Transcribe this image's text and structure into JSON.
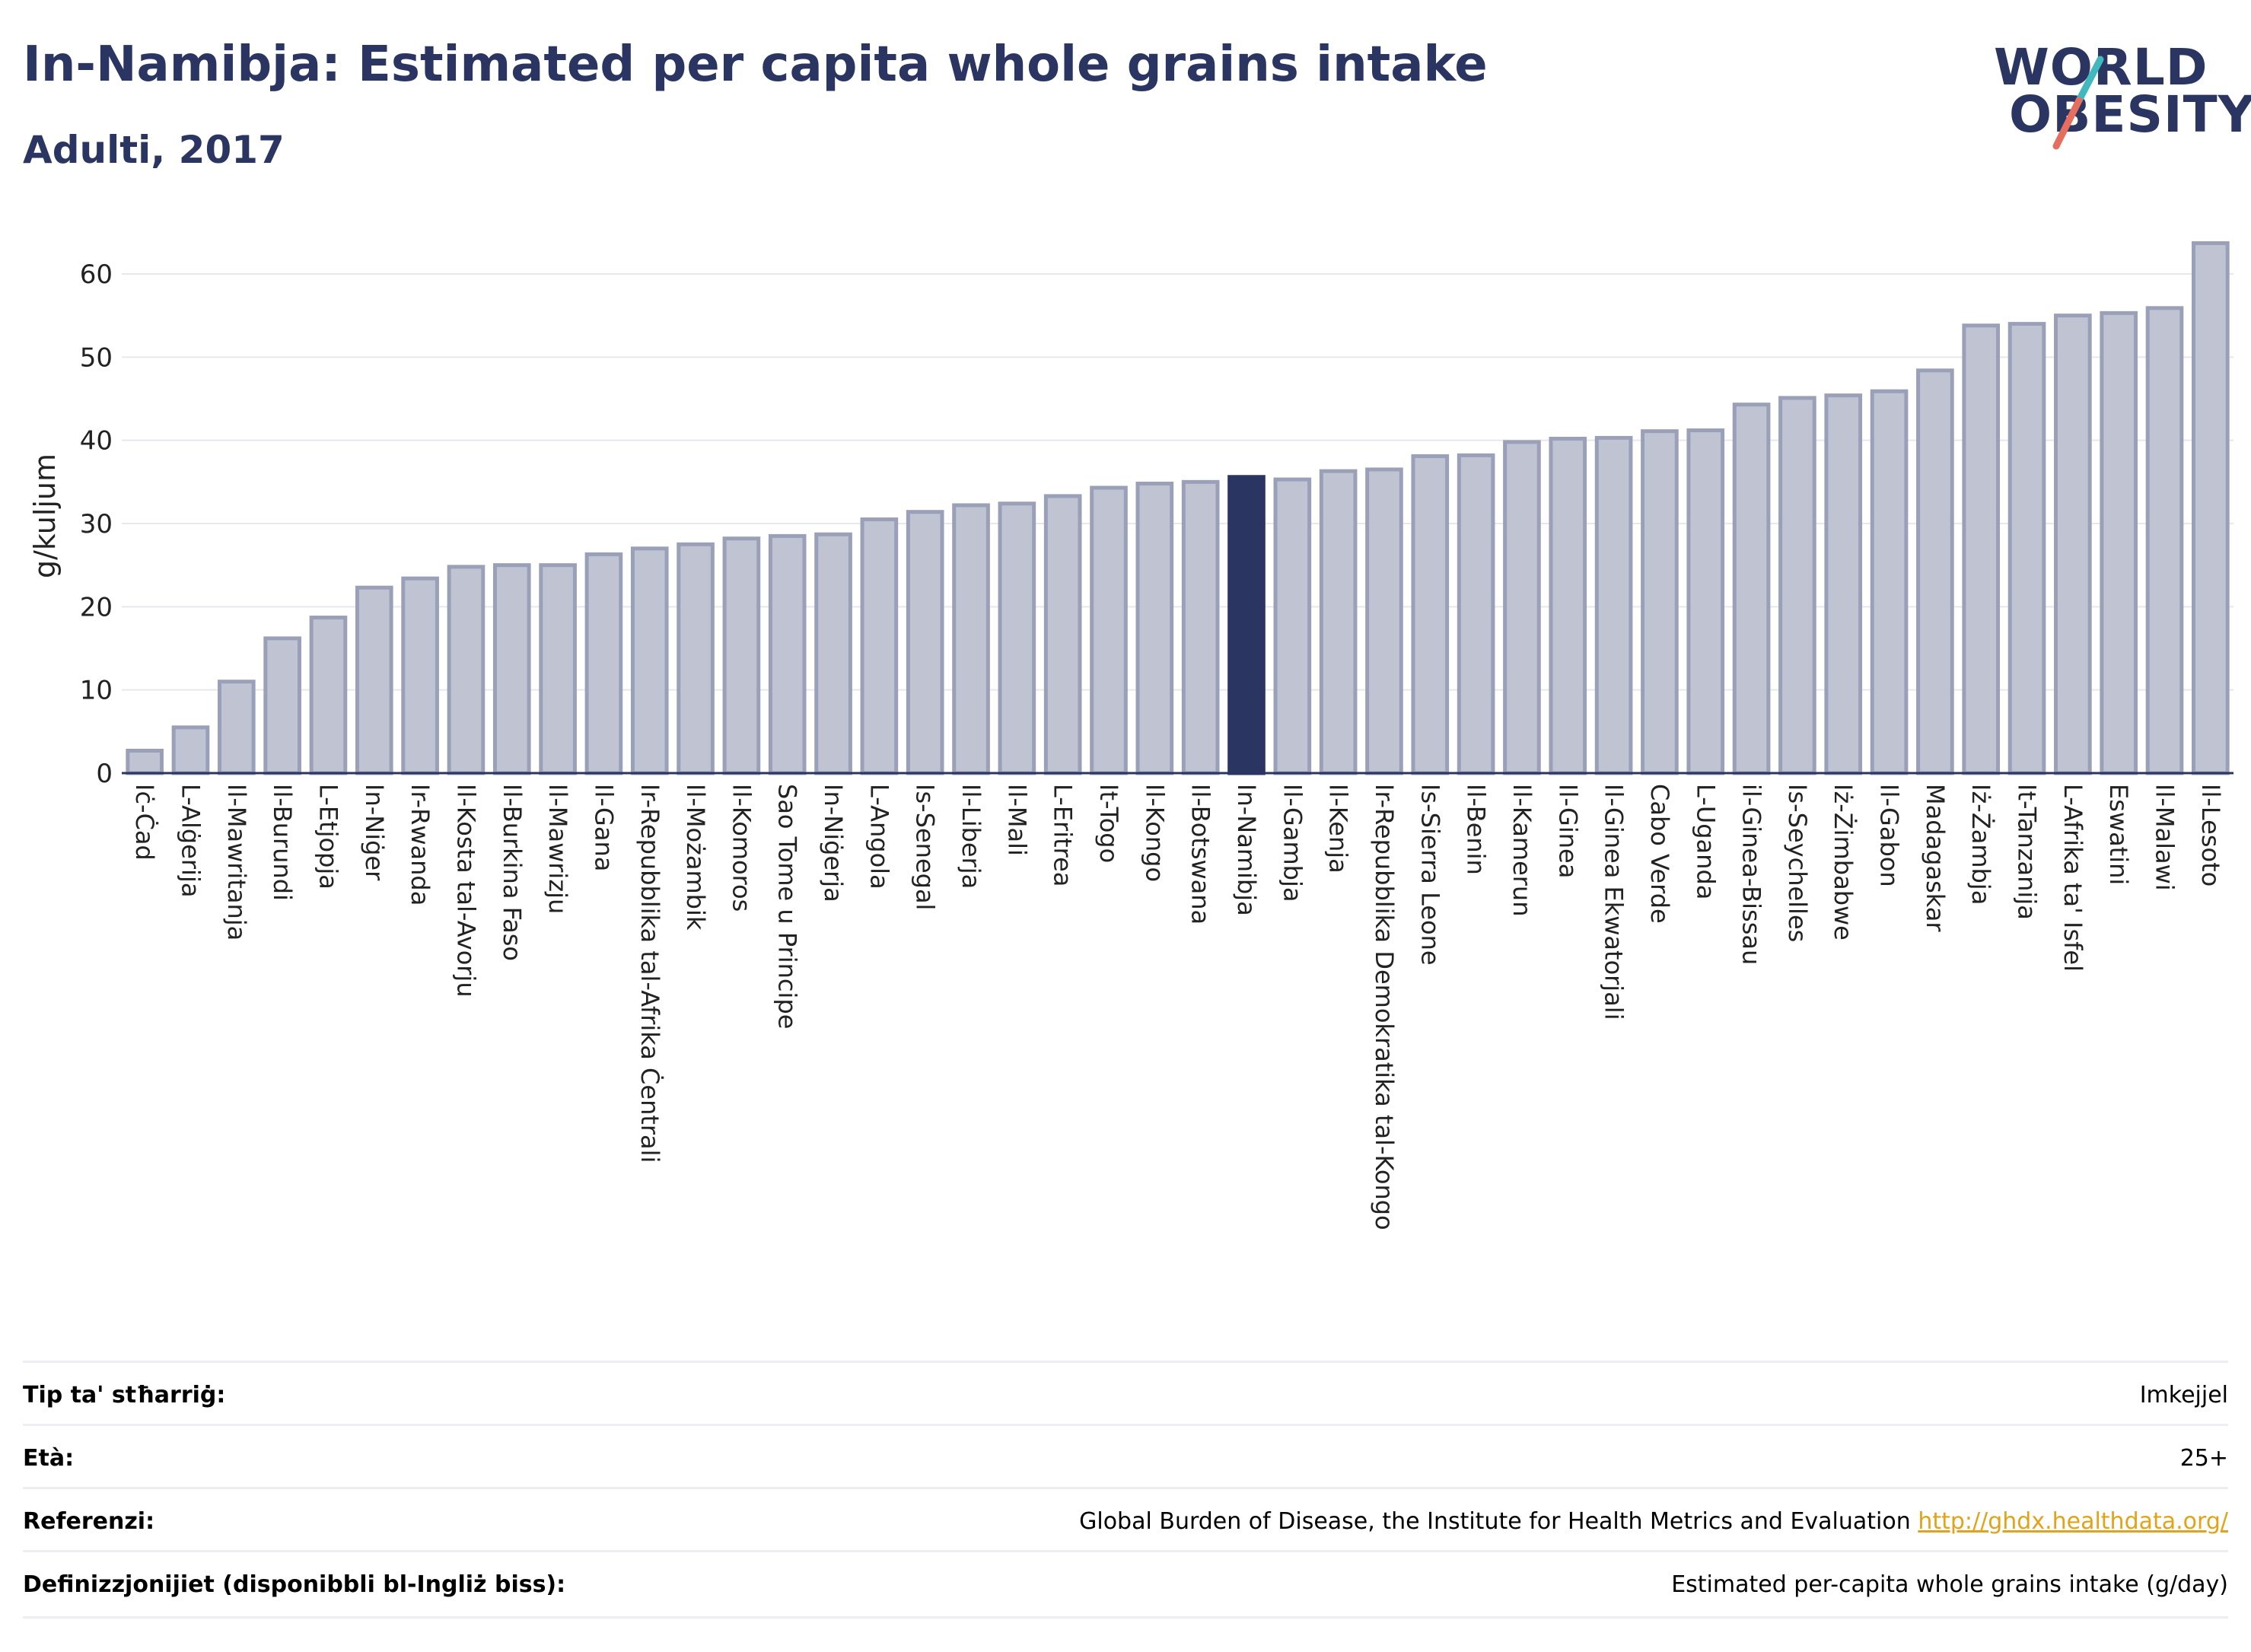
{
  "header": {
    "title": "In-Namibja: Estimated per capita whole grains intake",
    "subtitle": "Adulti, 2017"
  },
  "logo": {
    "line1": "WORLD",
    "line2": "OBESITY"
  },
  "colors": {
    "bar": "#bfc3d2",
    "bar_stroke": "#9aa0b8",
    "highlight": "#2a3561",
    "text": "#2a3561",
    "accent_teal": "#40b8bd",
    "accent_red": "#e66e5e"
  },
  "chart_data": {
    "type": "bar",
    "ylabel": "g/kuljum",
    "ylim": [
      0,
      65
    ],
    "yticks": [
      0,
      10,
      20,
      30,
      40,
      50,
      60
    ],
    "grid": true,
    "highlight": "In-Namibja",
    "categories": [
      "Iċ-Ċad",
      "L-Alġerija",
      "Il-Mawritanja",
      "Il-Burundi",
      "L-Etjopja",
      "In-Niġer",
      "Ir-Rwanda",
      "Il-Kosta tal-Avorju",
      "Il-Burkina Faso",
      "Il-Mawrizju",
      "Il-Gana",
      "Ir-Repubblika tal-Afrika Ċentrali",
      "Il-Możambik",
      "Il-Komoros",
      "Sao Tome u Principe",
      "In-Niġerja",
      "L-Angola",
      "Is-Senegal",
      "Il-Liberja",
      "Il-Mali",
      "L-Eritrea",
      "It-Togo",
      "Il-Kongo",
      "Il-Botswana",
      "In-Namibja",
      "Il-Gambja",
      "Il-Kenja",
      "Ir-Repubblika Demokratika tal-Kongo",
      "Is-Sierra Leone",
      "Il-Benin",
      "Il-Kamerun",
      "Il-Ginea",
      "Il-Ginea Ekwatorjali",
      "Cabo Verde",
      "L-Uganda",
      "il-Ginea-Bissau",
      "Is-Seychelles",
      "Iż-Żimbabwe",
      "Il-Gabon",
      "Madagaskar",
      "Iż-Żambja",
      "It-Tanzanija",
      "L-Afrika ta' Isfel",
      "Eswatini",
      "Il-Malawi",
      "Il-Lesoto"
    ],
    "values": [
      2.7,
      5.5,
      11.0,
      16.2,
      18.7,
      22.3,
      23.4,
      24.8,
      25.0,
      25.0,
      26.3,
      27.0,
      27.5,
      28.2,
      28.5,
      28.7,
      30.5,
      31.4,
      32.2,
      32.4,
      33.3,
      34.3,
      34.8,
      35.0,
      35.6,
      35.3,
      36.3,
      36.5,
      38.1,
      38.2,
      39.8,
      40.2,
      40.3,
      41.1,
      41.2,
      44.3,
      45.1,
      45.4,
      45.9,
      48.4,
      53.8,
      54.0,
      55.0,
      55.3,
      55.9,
      63.7
    ]
  },
  "info_table": [
    {
      "label": "Tip ta' stħarriġ:",
      "value": "Imkejjel"
    },
    {
      "label": "Età:",
      "value": "25+"
    },
    {
      "label": "Referenzi:",
      "value": "Global Burden of Disease, the Institute for Health Metrics and Evaluation",
      "link": "http://ghdx.healthdata.org/"
    },
    {
      "label": "Definizzjonijiet (disponibbli bl-Ingliż biss):",
      "value": "Estimated per-capita whole grains intake (g/day)"
    }
  ]
}
